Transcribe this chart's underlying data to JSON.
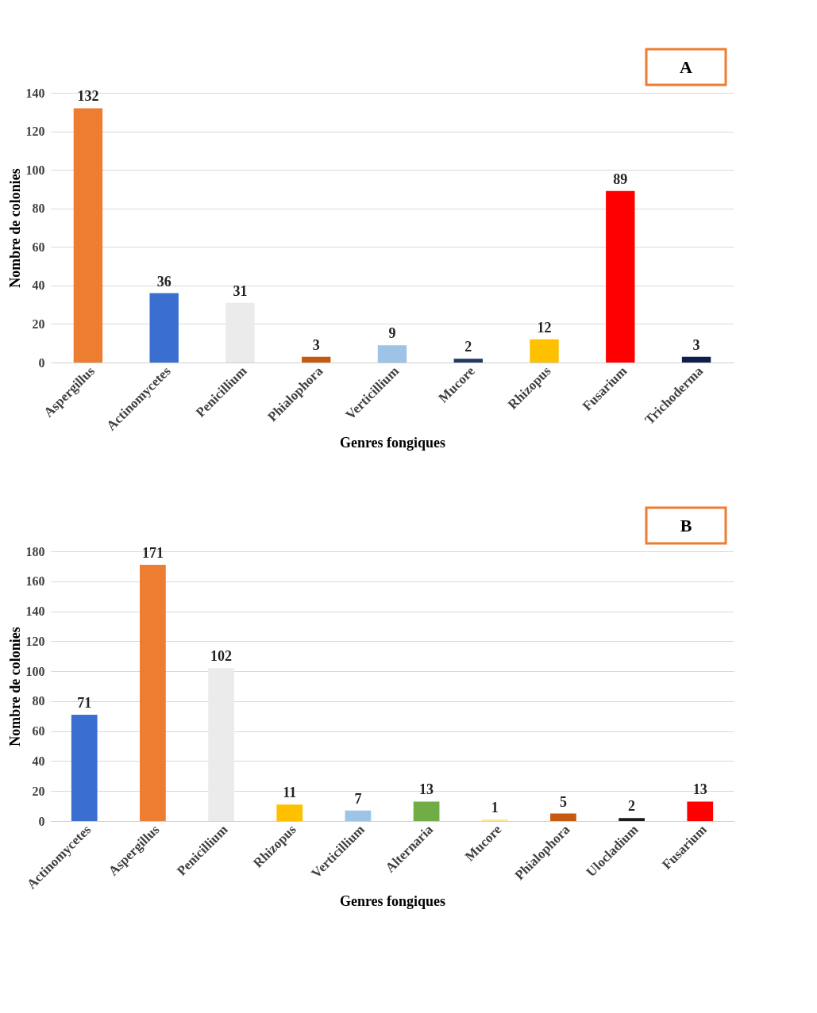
{
  "chart_data": [
    {
      "type": "bar",
      "xlabel": "Genres fongiques",
      "ylabel": "Nombre de colonies",
      "annotations": [
        "A"
      ],
      "categories": [
        "Aspergillus",
        "Actinomycetes",
        "Penicillium",
        "Phialophora",
        "Verticillium",
        "Mucore",
        "Rhizopus",
        "Fusarium",
        "Trichoderma"
      ],
      "values": [
        132,
        36,
        31,
        3,
        9,
        2,
        12,
        89,
        3
      ],
      "colors": [
        "#ed7d31",
        "#3a6fd0",
        "#ebebeb",
        "#c55a11",
        "#9dc3e6",
        "#1f3864",
        "#ffc000",
        "#ff0000",
        "#0d1f4a"
      ],
      "ylim": [
        0,
        140
      ],
      "yticks": [
        0,
        20,
        40,
        60,
        80,
        100,
        120,
        140
      ],
      "grid": "y",
      "data_labels": true
    },
    {
      "type": "bar",
      "xlabel": "Genres fongiques",
      "ylabel": "Nombre de colonies",
      "annotations": [
        "B"
      ],
      "categories": [
        "Actinomycetes",
        "Aspergillus",
        "Penicillium",
        "Rhizopus",
        "Verticillium",
        "Alternaria",
        "Mucore",
        "Phialophora",
        "Ulocladium",
        "Fusarium"
      ],
      "values": [
        71,
        171,
        102,
        11,
        7,
        13,
        1,
        5,
        2,
        13
      ],
      "colors": [
        "#3a6fd0",
        "#ed7d31",
        "#ebebeb",
        "#ffc000",
        "#9dc3e6",
        "#70ad47",
        "#ffe699",
        "#c55a11",
        "#1a1a1a",
        "#ff0000"
      ],
      "ylim": [
        0,
        180
      ],
      "yticks": [
        0,
        20,
        40,
        60,
        80,
        100,
        120,
        140,
        160,
        180
      ],
      "grid": "y",
      "data_labels": true
    }
  ]
}
